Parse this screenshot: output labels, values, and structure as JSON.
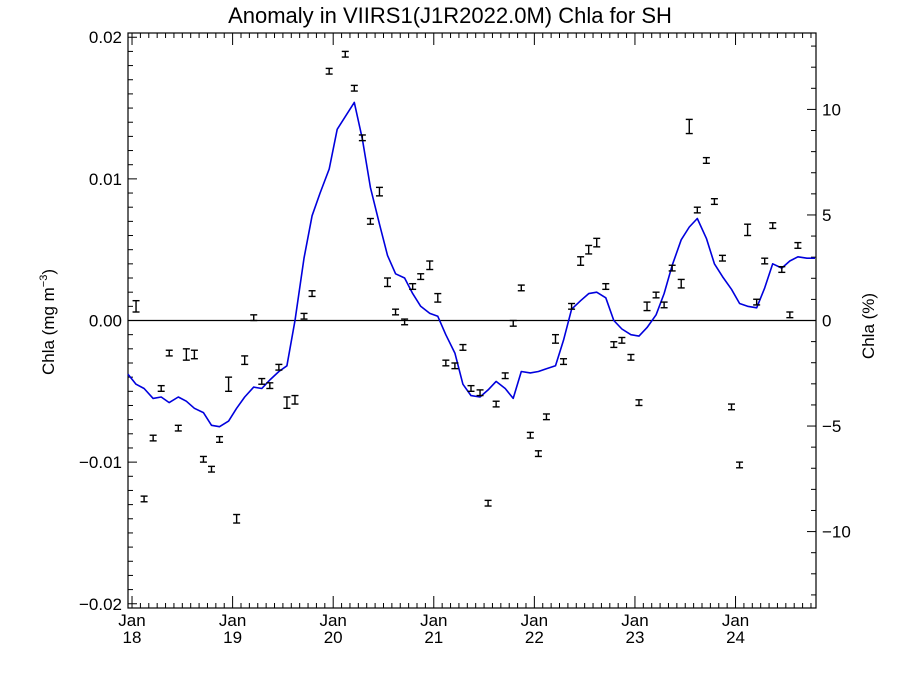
{
  "chart_data": {
    "type": "line",
    "title": "Anomaly in VIIRS1(J1R2022.0M) Chla for SH",
    "ylabel_left": "Chla (mg m",
    "ylabel_left_superscript": "−3",
    "ylabel_left_close": ")",
    "ylabel_right": "Chla (%)",
    "x_tick_months": [
      "Jan",
      "Jan",
      "Jan",
      "Jan",
      "Jan",
      "Jan",
      "Jan"
    ],
    "x_tick_years": [
      "18",
      "19",
      "20",
      "21",
      "22",
      "23",
      "24"
    ],
    "x_tick_values": [
      2018,
      2019,
      2020,
      2021,
      2022,
      2023,
      2024
    ],
    "xlim": [
      2017.96,
      2024.8
    ],
    "ylim_left": [
      -0.0203,
      0.0203
    ],
    "y_ticks_left": [
      -0.02,
      -0.01,
      0.0,
      0.01,
      0.02
    ],
    "y_tick_labels_left": [
      "−0.02",
      "−0.01",
      "0.00",
      "0.01",
      "0.02"
    ],
    "ylim_right": [
      -13.62,
      13.62
    ],
    "y_ticks_right": [
      -10,
      -5,
      0,
      5,
      10
    ],
    "y_tick_labels_right": [
      "−10",
      "−5",
      "0",
      "5",
      "10"
    ],
    "zero_line": true,
    "grid": false,
    "series": [
      {
        "kind": "points_with_error_bars",
        "color": "#000000",
        "x": [
          2018.04,
          2018.12,
          2018.21,
          2018.29,
          2018.37,
          2018.46,
          2018.54,
          2018.62,
          2018.71,
          2018.79,
          2018.87,
          2018.96,
          2019.04,
          2019.12,
          2019.21,
          2019.29,
          2019.37,
          2019.46,
          2019.54,
          2019.62,
          2019.71,
          2019.79,
          2019.96,
          2020.12,
          2020.21,
          2020.29,
          2020.37,
          2020.46,
          2020.54,
          2020.62,
          2020.71,
          2020.79,
          2020.87,
          2020.96,
          2021.04,
          2021.12,
          2021.21,
          2021.29,
          2021.37,
          2021.46,
          2021.54,
          2021.62,
          2021.71,
          2021.79,
          2021.87,
          2021.96,
          2022.04,
          2022.12,
          2022.21,
          2022.29,
          2022.37,
          2022.46,
          2022.54,
          2022.62,
          2022.71,
          2022.79,
          2022.87,
          2022.96,
          2023.04,
          2023.12,
          2023.21,
          2023.29,
          2023.37,
          2023.46,
          2023.54,
          2023.62,
          2023.71,
          2023.79,
          2023.87,
          2023.96,
          2024.04,
          2024.12,
          2024.21,
          2024.29,
          2024.37,
          2024.46,
          2024.54,
          2024.62
        ],
        "y": [
          0.001,
          -0.0126,
          -0.0083,
          -0.0048,
          -0.0023,
          -0.0076,
          -0.0024,
          -0.0024,
          -0.0098,
          -0.0105,
          -0.0084,
          -0.0045,
          -0.014,
          -0.0028,
          0.0002,
          -0.0043,
          -0.0046,
          -0.0033,
          -0.0058,
          -0.0056,
          0.0003,
          0.0019,
          0.0176,
          0.0188,
          0.0164,
          0.0129,
          0.007,
          0.0091,
          0.0027,
          0.0006,
          -0.0001,
          0.0024,
          0.0031,
          0.0039,
          0.0016,
          -0.003,
          -0.0032,
          -0.0019,
          -0.0048,
          -0.0051,
          -0.0129,
          -0.0059,
          -0.0039,
          -0.0002,
          0.0023,
          -0.0081,
          -0.0094,
          -0.0068,
          -0.0013,
          -0.0029,
          0.001,
          0.0042,
          0.005,
          0.0055,
          0.0024,
          -0.0017,
          -0.0014,
          -0.0026,
          -0.0058,
          0.001,
          0.0018,
          0.0011,
          0.0037,
          0.0026,
          0.0137,
          0.0078,
          0.0113,
          0.0084,
          0.0044,
          -0.0061,
          -0.0102,
          0.0064,
          0.0013,
          0.0042,
          0.0067,
          0.0036,
          0.0004,
          0.0053
        ],
        "err": [
          0.0004,
          0.0002,
          0.0002,
          0.0002,
          0.0002,
          0.0002,
          0.0004,
          0.0003,
          0.0002,
          0.0002,
          0.0002,
          0.0005,
          0.0003,
          0.0003,
          0.0002,
          0.0002,
          0.0002,
          0.0002,
          0.0004,
          0.0003,
          0.0002,
          0.0002,
          0.0002,
          0.0002,
          0.0002,
          0.0002,
          0.0002,
          0.0003,
          0.0003,
          0.0002,
          0.0002,
          0.0002,
          0.0002,
          0.0003,
          0.0003,
          0.0002,
          0.0002,
          0.0002,
          0.0002,
          0.0002,
          0.0002,
          0.0002,
          0.0002,
          0.0002,
          0.0002,
          0.0002,
          0.0002,
          0.0002,
          0.0003,
          0.0002,
          0.0002,
          0.0003,
          0.0003,
          0.0003,
          0.0002,
          0.0002,
          0.0002,
          0.0002,
          0.0002,
          0.0003,
          0.0002,
          0.0002,
          0.0002,
          0.0003,
          0.0005,
          0.0002,
          0.0002,
          0.0002,
          0.0002,
          0.0002,
          0.0002,
          0.0004,
          0.0002,
          0.0002,
          0.0002,
          0.0002,
          0.0002,
          0.0002
        ]
      },
      {
        "kind": "line",
        "color": "#0000dd",
        "x": [
          2017.96,
          2018.04,
          2018.12,
          2018.21,
          2018.29,
          2018.37,
          2018.46,
          2018.54,
          2018.62,
          2018.71,
          2018.79,
          2018.87,
          2018.96,
          2019.04,
          2019.12,
          2019.21,
          2019.29,
          2019.37,
          2019.46,
          2019.54,
          2019.62,
          2019.71,
          2019.79,
          2019.87,
          2019.96,
          2020.04,
          2020.12,
          2020.21,
          2020.29,
          2020.37,
          2020.46,
          2020.54,
          2020.62,
          2020.71,
          2020.79,
          2020.87,
          2020.96,
          2021.04,
          2021.12,
          2021.21,
          2021.29,
          2021.37,
          2021.46,
          2021.54,
          2021.62,
          2021.71,
          2021.79,
          2021.87,
          2021.96,
          2022.04,
          2022.12,
          2022.21,
          2022.29,
          2022.37,
          2022.46,
          2022.54,
          2022.62,
          2022.71,
          2022.79,
          2022.87,
          2022.96,
          2023.04,
          2023.12,
          2023.21,
          2023.29,
          2023.37,
          2023.46,
          2023.54,
          2023.62,
          2023.71,
          2023.79,
          2023.87,
          2023.96,
          2024.04,
          2024.12,
          2024.21,
          2024.29,
          2024.37,
          2024.46,
          2024.54,
          2024.62,
          2024.71,
          2024.79
        ],
        "y": [
          -0.0038,
          -0.0045,
          -0.0048,
          -0.0055,
          -0.0054,
          -0.0058,
          -0.0054,
          -0.0057,
          -0.0062,
          -0.0065,
          -0.0074,
          -0.0075,
          -0.0071,
          -0.0062,
          -0.0054,
          -0.0047,
          -0.0048,
          -0.0042,
          -0.0036,
          -0.0032,
          0.0,
          0.0044,
          0.0074,
          0.009,
          0.0107,
          0.0135,
          0.0144,
          0.0154,
          0.0128,
          0.0094,
          0.0068,
          0.0046,
          0.0033,
          0.003,
          0.0019,
          0.001,
          0.0005,
          0.0003,
          -0.001,
          -0.0023,
          -0.0045,
          -0.0053,
          -0.0054,
          -0.0049,
          -0.0043,
          -0.0048,
          -0.0055,
          -0.0036,
          -0.0037,
          -0.0036,
          -0.0034,
          -0.0032,
          -0.0014,
          0.0008,
          0.0014,
          0.0019,
          0.002,
          0.0016,
          0.0,
          -0.0006,
          -0.001,
          -0.0011,
          -0.0005,
          0.0004,
          0.0019,
          0.0039,
          0.0057,
          0.0066,
          0.0072,
          0.0058,
          0.004,
          0.0031,
          0.0022,
          0.0012,
          0.001,
          0.0009,
          0.0023,
          0.004,
          0.0037,
          0.0042,
          0.0045,
          0.0044,
          0.0044
        ]
      }
    ]
  }
}
